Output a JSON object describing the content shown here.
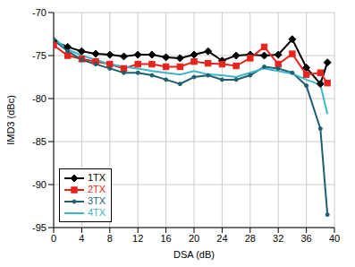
{
  "chart_data": {
    "type": "line",
    "x_label": "DSA (dB)",
    "y_label": "IMD3 (dBc)",
    "x": [
      0,
      2,
      4,
      6,
      8,
      10,
      12,
      14,
      16,
      18,
      20,
      22,
      24,
      26,
      28,
      30,
      32,
      34,
      36,
      38,
      39
    ],
    "xlim": [
      0,
      40
    ],
    "xticks": [
      0,
      4,
      8,
      12,
      16,
      20,
      24,
      28,
      32,
      36,
      40
    ],
    "ylim": [
      -95,
      -70
    ],
    "yticks": [
      -95,
      -90,
      -85,
      -80,
      -75,
      -70
    ],
    "grid": true,
    "legend": "lower left",
    "series": [
      {
        "name": "1TX",
        "color": "#000000",
        "marker": "diamond",
        "values": [
          -73.3,
          -74.0,
          -74.5,
          -74.8,
          -74.9,
          -75.1,
          -74.9,
          -74.9,
          -75.2,
          -75.3,
          -74.9,
          -74.5,
          -75.6,
          -75.0,
          -74.9,
          -75.0,
          -74.9,
          -73.1,
          -76.4,
          -78.3,
          -75.8
        ]
      },
      {
        "name": "2TX",
        "color": "#e8231d",
        "marker": "square",
        "values": [
          -73.8,
          -75.0,
          -75.4,
          -75.7,
          -76.0,
          -76.5,
          -76.0,
          -76.0,
          -76.3,
          -76.3,
          -75.7,
          -75.9,
          -76.0,
          -76.2,
          -75.3,
          -74.0,
          -76.0,
          -74.8,
          -77.2,
          -77.0,
          -78.2
        ]
      },
      {
        "name": "3TX",
        "color": "#1f5f6e",
        "marker": "circle",
        "values": [
          -73.2,
          -74.5,
          -75.5,
          -76.0,
          -76.5,
          -77.0,
          -77.0,
          -77.3,
          -77.8,
          -78.3,
          -77.5,
          -77.3,
          -77.8,
          -77.8,
          -77.3,
          -76.3,
          -76.5,
          -77.0,
          -78.5,
          -83.5,
          -93.5
        ]
      },
      {
        "name": "4TX",
        "color": "#3bb5c8",
        "marker": "none",
        "values": [
          -73.0,
          -74.3,
          -75.0,
          -75.5,
          -76.0,
          -76.3,
          -76.5,
          -76.8,
          -77.0,
          -77.2,
          -76.8,
          -77.2,
          -77.3,
          -77.5,
          -77.0,
          -76.5,
          -76.8,
          -77.1,
          -77.8,
          -78.4,
          -81.8
        ]
      }
    ]
  }
}
